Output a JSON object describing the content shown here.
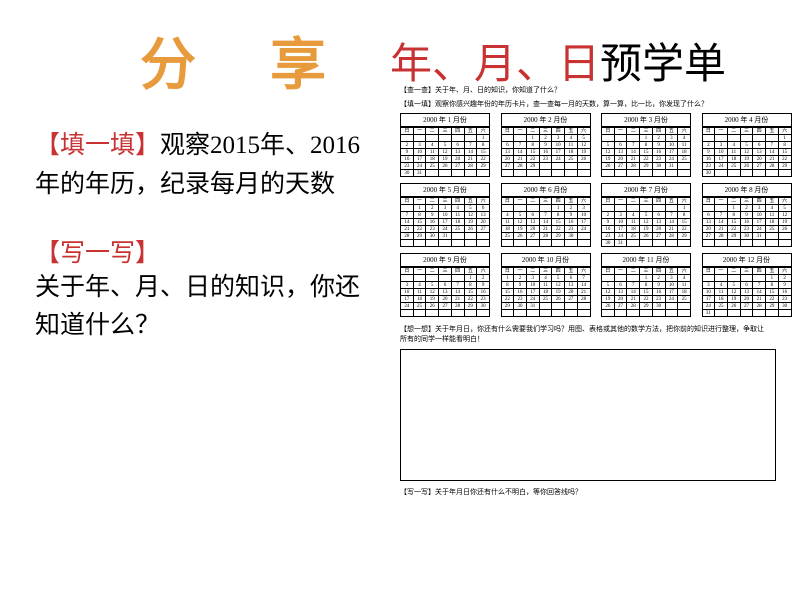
{
  "header": {
    "share": "分 享",
    "title_red": "年、月、日",
    "title_black": "预学单"
  },
  "tasks": {
    "fill_label": "【填一填】",
    "fill_text": "观察2015年、2016年的年历，纪录每月的天数",
    "write_label": "【写一写】",
    "write_text": "关于年、月、日的知识，你还知道什么？"
  },
  "calendar": {
    "header_line1": "【查一查】关于年、月、日的知识，你知道了什么？",
    "header_line2": "【填一填】观察你感兴趣年份的年历卡片，查一查每一月的天数，算一算，比一比，你发现了什么？",
    "year": "2000",
    "months": [
      "1",
      "2",
      "3",
      "4",
      "5",
      "6",
      "7",
      "8",
      "9",
      "10",
      "11",
      "12"
    ],
    "weekdays": [
      "日",
      "一",
      "二",
      "三",
      "四",
      "五",
      "六"
    ],
    "footer_line1": "【想一想】关于年月日，你还有什么需要我们学习吗？用图、表格或其他的数学方法，把你前的知识进行整理，争取让",
    "footer_line2": "所有的同学一样能看明白！",
    "footer_q": "【写一写】关于年月日你还有什么不明白，等你回答线吗？"
  },
  "colors": {
    "share_orange": "#E89B3C",
    "red": "#C83232",
    "black": "#000000"
  }
}
